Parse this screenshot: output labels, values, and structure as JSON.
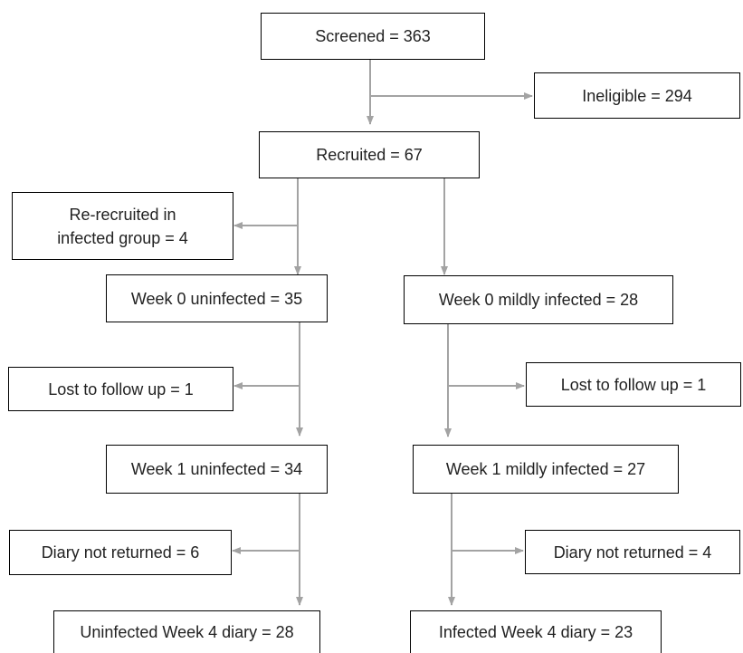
{
  "flowchart": {
    "nodes": {
      "screened": "Screened = 363",
      "ineligible": "Ineligible = 294",
      "recruited": "Recruited = 67",
      "rerecruited_line1": "Re-recruited in",
      "rerecruited_line2": "infected group = 4",
      "week0_uninfected": "Week 0 uninfected = 35",
      "week0_infected": "Week 0 mildly infected = 28",
      "lost_uninfected": "Lost to follow up = 1",
      "lost_infected": "Lost to follow up = 1",
      "week1_uninfected": "Week 1 uninfected = 34",
      "week1_infected": "Week 1 mildly infected = 27",
      "diary_uninfected": "Diary not returned = 6",
      "diary_infected": "Diary not returned = 4",
      "week4_uninfected": "Uninfected Week 4 diary = 28",
      "week4_infected": "Infected Week 4 diary = 23"
    },
    "colors": {
      "box_border": "#000000",
      "connector": "#a3a3a3",
      "text": "#222222"
    }
  }
}
